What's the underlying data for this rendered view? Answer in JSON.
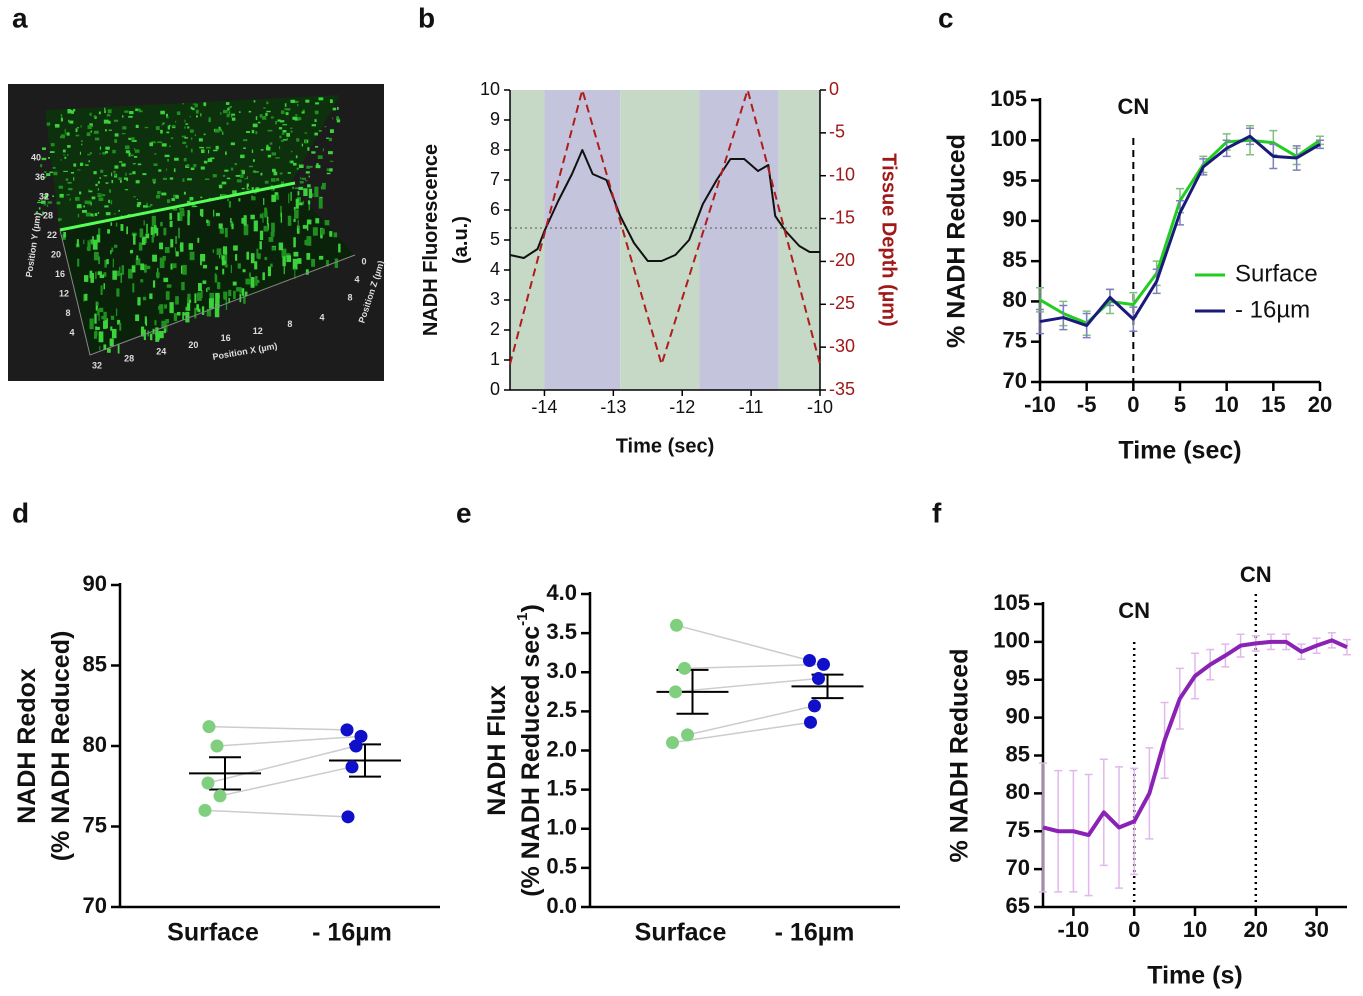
{
  "chart_data": [
    {
      "type": "image",
      "panel": "a",
      "labels": {
        "y": "Position Y (µm)",
        "x": "Position X (µm)",
        "z": "Position Z (µm)"
      },
      "yticks": [
        40,
        36,
        32,
        28,
        22,
        20,
        16,
        12,
        8,
        4
      ],
      "xticks": [
        32,
        28,
        24,
        20,
        16,
        12,
        8,
        4
      ],
      "zticks": [
        0,
        4,
        8
      ]
    },
    {
      "type": "dual-line",
      "panel": "b",
      "xlabel": "Time (sec)",
      "ylabel": [
        "NADH Fluorescence",
        "(a.u.)"
      ],
      "y2label": "Tissue Depth (µm)",
      "xlim": [
        -14.5,
        -10
      ],
      "xticks": [
        -14,
        -13,
        -12,
        -11,
        -10
      ],
      "ylim": [
        0,
        10
      ],
      "yticks": [
        0,
        1,
        2,
        3,
        4,
        5,
        6,
        7,
        8,
        9,
        10
      ],
      "y2lim": [
        -35,
        0
      ],
      "y2ticks": [
        0,
        -5,
        -10,
        -15,
        -20,
        -25,
        -30,
        -35
      ],
      "bands": [
        {
          "x0": -14.5,
          "x1": -14,
          "color": "#c5d9c6"
        },
        {
          "x0": -14,
          "x1": -12.9,
          "color": "#c4c5dc"
        },
        {
          "x0": -12.9,
          "x1": -11.75,
          "color": "#c5d9c6"
        },
        {
          "x0": -11.75,
          "x1": -10.6,
          "color": "#c4c5dc"
        },
        {
          "x0": -10.6,
          "x1": -10,
          "color": "#c5d9c6"
        }
      ],
      "hline": 5.4,
      "series": [
        {
          "color": "#111111",
          "x": [
            -14.5,
            -14.3,
            -14.1,
            -14.0,
            -13.8,
            -13.6,
            -13.45,
            -13.3,
            -13.1,
            -12.9,
            -12.7,
            -12.5,
            -12.3,
            -12.1,
            -11.9,
            -11.7,
            -11.5,
            -11.3,
            -11.1,
            -10.9,
            -10.75,
            -10.65,
            -10.5,
            -10.3,
            -10.15,
            -10.0
          ],
          "values": [
            4.5,
            4.4,
            4.7,
            5.3,
            6.3,
            7.2,
            8.0,
            7.2,
            7.0,
            5.8,
            4.9,
            4.3,
            4.3,
            4.5,
            5.0,
            6.2,
            7.0,
            7.7,
            7.7,
            7.3,
            7.5,
            5.8,
            5.3,
            4.8,
            4.6,
            4.6
          ]
        },
        {
          "color": "#b01c1c",
          "axis": "y2",
          "dash": true,
          "x": [
            -14.5,
            -13.45,
            -12.3,
            -11.05,
            -10.0
          ],
          "values": [
            -32,
            0,
            -32,
            0,
            -32
          ]
        }
      ]
    },
    {
      "type": "line",
      "panel": "c",
      "xlabel": "Time (sec)",
      "ylabel": "% NADH Reduced",
      "xlim": [
        -10,
        20
      ],
      "xticks": [
        -10,
        -5,
        0,
        5,
        10,
        15,
        20
      ],
      "ylim": [
        70,
        105
      ],
      "yticks": [
        70,
        75,
        80,
        85,
        90,
        95,
        100,
        105
      ],
      "x": [
        -10,
        -7.5,
        -5,
        -2.5,
        0,
        2.5,
        5,
        7.5,
        10,
        12.5,
        15,
        17.5,
        20
      ],
      "annotations": [
        {
          "text": "CN",
          "x": 0
        }
      ],
      "vline_style": "dashed",
      "series": [
        {
          "name": "Surface",
          "color": "#22cc22",
          "error_color": "#7fbf7f",
          "values": [
            80.2,
            78.5,
            77.3,
            80.0,
            79.6,
            83.5,
            92.5,
            97.0,
            99.8,
            100.0,
            99.7,
            98.0,
            100.0
          ],
          "errors": [
            1.5,
            1.5,
            1.5,
            1.5,
            1.5,
            1.5,
            1.5,
            1.0,
            1.0,
            1.8,
            1.5,
            1.0,
            0.5
          ]
        },
        {
          "name": "- 16µm",
          "color": "#1a1a7a",
          "error_color": "#7f7fbf",
          "values": [
            77.5,
            78.0,
            77.0,
            80.5,
            77.8,
            82.5,
            91.0,
            96.7,
            99.0,
            100.5,
            98.0,
            97.8,
            99.5
          ],
          "errors": [
            1.5,
            1.5,
            1.5,
            1.0,
            1.5,
            1.5,
            1.5,
            1.0,
            1.0,
            1.0,
            1.5,
            1.5,
            0.5
          ]
        }
      ]
    },
    {
      "type": "dot",
      "panel": "d",
      "ylabel": [
        "NADH Redox",
        "(% NADH Reduced)"
      ],
      "categories": [
        "Surface",
        "- 16µm"
      ],
      "ylim": [
        70,
        90
      ],
      "yticks": [
        70,
        75,
        80,
        85,
        90
      ],
      "values": [
        [
          81.2,
          80.0,
          77.7,
          76.9,
          76.0
        ],
        [
          81.0,
          80.6,
          80.0,
          78.7,
          75.6
        ]
      ],
      "colors": [
        "#7fcf7f",
        "#1010c8"
      ],
      "pair_color": "#cccccc",
      "means": [
        78.3,
        79.1
      ],
      "sems": [
        1.0,
        1.0
      ]
    },
    {
      "type": "dot",
      "panel": "e",
      "ylabel": [
        "NADH  Flux",
        "(% NADH Reduced sec"
      ],
      "ylabel_sup": "-1",
      "ylabel_end": ")",
      "categories": [
        "Surface",
        "- 16µm"
      ],
      "ylim": [
        0,
        4
      ],
      "yticks": [
        {
          "value": 0,
          "label": "0.0"
        },
        0.5,
        {
          "value": 1,
          "label": "1.0"
        },
        1.5,
        {
          "value": 2,
          "label": "2.0"
        },
        2.5,
        {
          "value": 3,
          "label": "3.0"
        },
        3.5,
        {
          "value": 4,
          "label": "4.0"
        }
      ],
      "values": [
        [
          3.6,
          3.05,
          2.75,
          2.2,
          2.1
        ],
        [
          3.15,
          3.1,
          2.92,
          2.57,
          2.36
        ]
      ],
      "colors": [
        "#7fcf7f",
        "#1010c8"
      ],
      "pair_color": "#cccccc",
      "means": [
        2.75,
        2.82
      ],
      "sems": [
        0.28,
        0.15
      ]
    },
    {
      "type": "line",
      "panel": "f",
      "xlabel": "Time (s)",
      "ylabel": "% NADH Reduced",
      "xlim": [
        -15,
        35
      ],
      "xticks": [
        -10,
        0,
        10,
        20,
        30
      ],
      "ylim": [
        65,
        105
      ],
      "yticks": [
        65,
        70,
        75,
        80,
        85,
        90,
        95,
        100,
        105
      ],
      "x": [
        -15,
        -12.5,
        -10,
        -7.5,
        -5,
        -2.5,
        0,
        2.5,
        5,
        7.5,
        10,
        12.5,
        15,
        17.5,
        20,
        22.5,
        25,
        27.5,
        30,
        32.5,
        35
      ],
      "annotations": [
        {
          "text": "CN",
          "x": 0
        },
        {
          "text": "CN",
          "x": 20
        }
      ],
      "vline_style": "dotted",
      "series": [
        {
          "color": "#8a22b4",
          "error_color": "#e0b8ec",
          "width": 4,
          "values": [
            75.5,
            75,
            75,
            74.5,
            77.5,
            75.5,
            76.3,
            80,
            87,
            92.5,
            95.5,
            97,
            98.2,
            99.5,
            99.8,
            100,
            100,
            98.7,
            99.5,
            100.2,
            99.3
          ],
          "errors": [
            8.5,
            8,
            8,
            8,
            7,
            8,
            7,
            6,
            5,
            4,
            3,
            2,
            1.5,
            1.5,
            1,
            1,
            1,
            1,
            1,
            1,
            1
          ]
        }
      ]
    }
  ]
}
